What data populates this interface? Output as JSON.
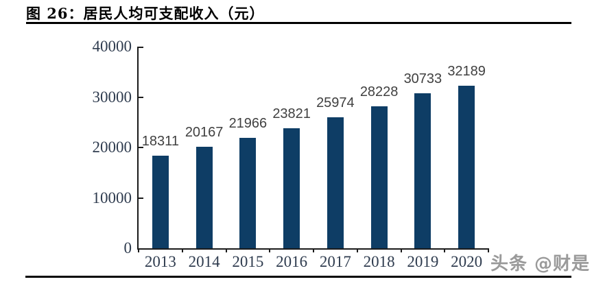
{
  "figure": {
    "title": "图 26：居民人均可支配收入（元）"
  },
  "watermark": {
    "text": "头条 @财是"
  },
  "colors": {
    "bar": "#0e3d65",
    "data_label": "#404040",
    "axis_line": "#1a1a1a",
    "axis_tick_label": "#2e3b4e",
    "title": "#000000",
    "watermark": "#9a9a9a"
  },
  "chart_data": {
    "type": "bar",
    "title": "图 26：居民人均可支配收入（元）",
    "categories": [
      "2013",
      "2014",
      "2015",
      "2016",
      "2017",
      "2018",
      "2019",
      "2020"
    ],
    "values": [
      18311,
      20167,
      21966,
      23821,
      25974,
      28228,
      30733,
      32189
    ],
    "series_name": "居民人均可支配收入",
    "xlabel": "",
    "ylabel": "",
    "ylim": [
      0,
      40000
    ],
    "yticks": [
      0,
      10000,
      20000,
      30000,
      40000
    ],
    "data_labels": true,
    "grid": false,
    "legend": "none",
    "bar_color": "#0e3d65"
  }
}
